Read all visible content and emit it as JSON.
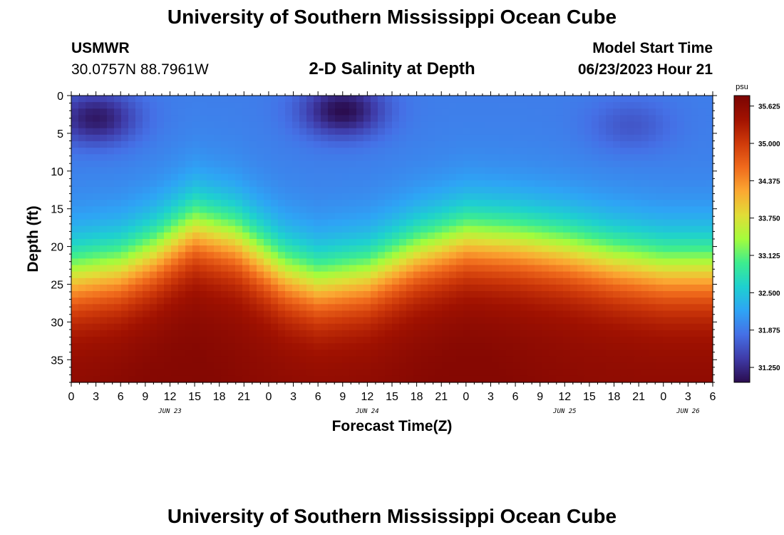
{
  "header": {
    "title": "University of Southern Mississippi Ocean Cube",
    "station": "USMWR",
    "coords": "30.0757N  88.7961W",
    "plot_title": "2-D Salinity at Depth",
    "model_label": "Model Start Time",
    "model_time": "06/23/2023 Hour 21"
  },
  "footer": {
    "title": "University of Southern Mississippi Ocean Cube"
  },
  "colors": {
    "palette": [
      "#2a0c4e",
      "#3f3ba8",
      "#4570e6",
      "#2ea4f5",
      "#1ed0d0",
      "#3ded8f",
      "#a4fc3c",
      "#e1dd37",
      "#fba832",
      "#f06a1c",
      "#cf3a0a",
      "#a11201",
      "#7a0403"
    ]
  },
  "chart_data": {
    "type": "heatmap",
    "title": "2-D Salinity at Depth",
    "xlabel": "Forecast Time(Z)",
    "ylabel": "Depth (ft)",
    "x_unit": "hours from 2023-06-23 00Z",
    "xlim": [
      0,
      78
    ],
    "ylim": [
      38,
      0
    ],
    "x_tick_labels": [
      "0",
      "3",
      "6",
      "9",
      "12",
      "15",
      "18",
      "21",
      "0",
      "3",
      "6",
      "9",
      "12",
      "15",
      "18",
      "21",
      "0",
      "3",
      "6",
      "9",
      "12",
      "15",
      "18",
      "21",
      "0",
      "3",
      "6"
    ],
    "y_ticks": [
      0,
      5,
      10,
      15,
      20,
      25,
      30,
      35
    ],
    "date_labels": [
      {
        "label": "JUN 23",
        "hour": 12
      },
      {
        "label": "JUN 24",
        "hour": 36
      },
      {
        "label": "JUN 25",
        "hour": 60
      },
      {
        "label": "JUN 26",
        "hour": 75
      }
    ],
    "colorbar": {
      "unit": "psu",
      "min": 31.0,
      "max": 35.8,
      "ticks": [
        "35.625",
        "35.000",
        "34.375",
        "33.750",
        "33.125",
        "32.500",
        "31.875",
        "31.250"
      ]
    },
    "interface_depth_ft": [
      {
        "hour": 0,
        "depth": 24
      },
      {
        "hour": 6,
        "depth": 23
      },
      {
        "hour": 10,
        "depth": 21
      },
      {
        "hour": 15,
        "depth": 17.5
      },
      {
        "hour": 20,
        "depth": 19
      },
      {
        "hour": 26,
        "depth": 23.5
      },
      {
        "hour": 30,
        "depth": 25
      },
      {
        "hour": 36,
        "depth": 24
      },
      {
        "hour": 42,
        "depth": 21
      },
      {
        "hour": 48,
        "depth": 19
      },
      {
        "hour": 54,
        "depth": 19.5
      },
      {
        "hour": 60,
        "depth": 20.5
      },
      {
        "hour": 66,
        "depth": 22
      },
      {
        "hour": 72,
        "depth": 23
      },
      {
        "hour": 78,
        "depth": 23
      }
    ],
    "surface_fresh_patches": [
      {
        "hour": 3,
        "depth": 3,
        "salinity": 31.1
      },
      {
        "hour": 33,
        "depth": 2,
        "salinity": 31.0
      },
      {
        "hour": 68,
        "depth": 4,
        "salinity": 31.6
      }
    ],
    "surface_salinity_psu": 31.9,
    "bottom_salinity_psu": 35.6,
    "bottom_max_windows": [
      {
        "hour": 12,
        "salinity": 35.7
      },
      {
        "hour": 48,
        "salinity": 35.7
      }
    ]
  }
}
